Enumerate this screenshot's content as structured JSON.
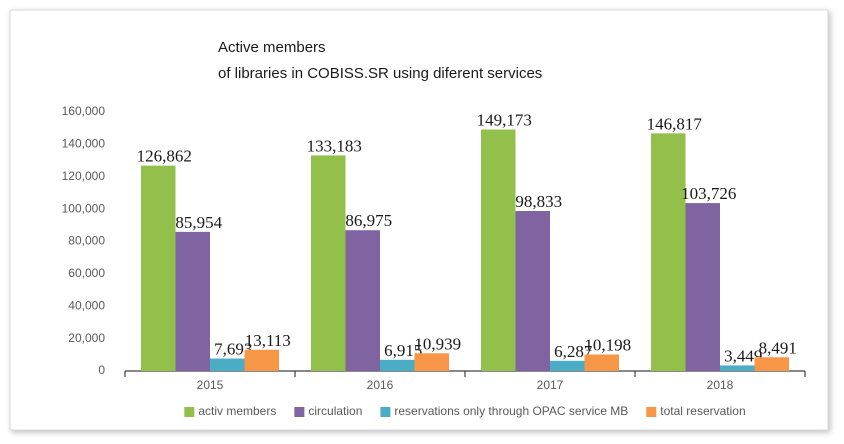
{
  "chart_data": {
    "type": "bar",
    "title": [
      "Active members",
      "of libraries in COBISS.SR using diferent services"
    ],
    "categories": [
      "2015",
      "2016",
      "2017",
      "2018"
    ],
    "series": [
      {
        "name": "activ members",
        "color": "#92c04a",
        "values": [
          126862,
          133183,
          149173,
          146817
        ],
        "value_labels": [
          "126,862",
          "133,183",
          "149,173",
          "146,817"
        ]
      },
      {
        "name": "circulation",
        "color": "#8064a2",
        "values": [
          85954,
          86975,
          98833,
          103726
        ],
        "value_labels": [
          "85,954",
          "86,975",
          "98,833",
          "103,726"
        ]
      },
      {
        "name": "reservations only through OPAC service MB",
        "color": "#4bacc6",
        "values": [
          7693,
          6915,
          6287,
          3449
        ],
        "value_labels": [
          "7,693",
          "6,915",
          "6,287",
          "3,449"
        ]
      },
      {
        "name": "total reservation",
        "color": "#f79646",
        "values": [
          13113,
          10939,
          10198,
          8491
        ],
        "value_labels": [
          "13,113",
          "10,939",
          "10,198",
          "8,491"
        ]
      }
    ],
    "ylim": [
      0,
      160000
    ],
    "yticks": [
      0,
      {
        "value": 20000,
        "label": "20,000"
      },
      {
        "value": 40000,
        "label": "40,000"
      },
      {
        "value": 60000,
        "label": "60,000"
      },
      {
        "value": 80000,
        "label": "80,000"
      },
      {
        "value": 100000,
        "label": "100,000"
      },
      {
        "value": 120000,
        "label": "120,000"
      },
      {
        "value": 140000,
        "label": "140,000"
      },
      {
        "value": 160000,
        "label": "160,000"
      }
    ],
    "grid": false,
    "legend": "bottom"
  }
}
